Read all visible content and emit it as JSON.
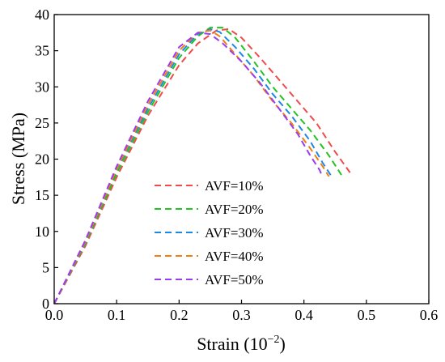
{
  "chart_data": {
    "type": "line",
    "title": "",
    "xlabel": "Strain (10",
    "xlabel_exponent": "−2",
    "xlabel_suffix": ")",
    "ylabel": "Stress (MPa)",
    "xlim": [
      0.0,
      0.6
    ],
    "ylim": [
      0,
      40
    ],
    "xticks": [
      "0.0",
      "0.1",
      "0.2",
      "0.3",
      "0.4",
      "0.5",
      "0.6"
    ],
    "yticks": [
      "0",
      "5",
      "10",
      "15",
      "20",
      "25",
      "30",
      "35",
      "40"
    ],
    "grid": false,
    "legend_position": "bottom-center",
    "line_style": "dashed",
    "series": [
      {
        "name": "AVF=10%",
        "color": "#f04a4a",
        "points": [
          [
            0,
            0
          ],
          [
            0.05,
            8
          ],
          [
            0.1,
            17.5
          ],
          [
            0.15,
            26
          ],
          [
            0.2,
            33
          ],
          [
            0.23,
            36
          ],
          [
            0.26,
            37.8
          ],
          [
            0.28,
            38
          ],
          [
            0.3,
            36.8
          ],
          [
            0.33,
            34
          ],
          [
            0.36,
            31
          ],
          [
            0.39,
            28
          ],
          [
            0.42,
            25
          ],
          [
            0.45,
            21
          ],
          [
            0.475,
            18
          ]
        ]
      },
      {
        "name": "AVF=20%",
        "color": "#22c322",
        "points": [
          [
            0,
            0
          ],
          [
            0.05,
            8.3
          ],
          [
            0.1,
            18
          ],
          [
            0.15,
            26.5
          ],
          [
            0.2,
            34
          ],
          [
            0.23,
            37
          ],
          [
            0.25,
            38.2
          ],
          [
            0.27,
            38.2
          ],
          [
            0.29,
            36.8
          ],
          [
            0.32,
            33.5
          ],
          [
            0.35,
            30
          ],
          [
            0.38,
            27
          ],
          [
            0.41,
            24
          ],
          [
            0.44,
            20.5
          ],
          [
            0.46,
            17.8
          ]
        ]
      },
      {
        "name": "AVF=30%",
        "color": "#1e88e5",
        "points": [
          [
            0,
            0
          ],
          [
            0.05,
            8.5
          ],
          [
            0.1,
            18.5
          ],
          [
            0.15,
            27
          ],
          [
            0.2,
            34.5
          ],
          [
            0.23,
            37.3
          ],
          [
            0.25,
            38
          ],
          [
            0.265,
            37.6
          ],
          [
            0.29,
            35.5
          ],
          [
            0.32,
            32.5
          ],
          [
            0.35,
            29
          ],
          [
            0.38,
            26
          ],
          [
            0.41,
            22.5
          ],
          [
            0.43,
            19.5
          ],
          [
            0.445,
            17.5
          ]
        ]
      },
      {
        "name": "AVF=40%",
        "color": "#f07f0f",
        "points": [
          [
            0,
            0
          ],
          [
            0.05,
            8.6
          ],
          [
            0.1,
            18.6
          ],
          [
            0.15,
            27.5
          ],
          [
            0.2,
            35
          ],
          [
            0.23,
            37.5
          ],
          [
            0.25,
            37.8
          ],
          [
            0.265,
            37
          ],
          [
            0.29,
            34.5
          ],
          [
            0.32,
            31.5
          ],
          [
            0.35,
            28
          ],
          [
            0.38,
            25
          ],
          [
            0.41,
            21.5
          ],
          [
            0.43,
            19
          ],
          [
            0.44,
            17.6
          ]
        ]
      },
      {
        "name": "AVF=50%",
        "color": "#9b3cf0",
        "points": [
          [
            0,
            0
          ],
          [
            0.05,
            8.8
          ],
          [
            0.1,
            19
          ],
          [
            0.15,
            28
          ],
          [
            0.2,
            35.5
          ],
          [
            0.23,
            37.5
          ],
          [
            0.25,
            37.3
          ],
          [
            0.27,
            36
          ],
          [
            0.3,
            33.5
          ],
          [
            0.33,
            30.5
          ],
          [
            0.36,
            27
          ],
          [
            0.39,
            23.5
          ],
          [
            0.41,
            20.5
          ],
          [
            0.425,
            18.5
          ],
          [
            0.43,
            17.5
          ]
        ]
      }
    ]
  }
}
